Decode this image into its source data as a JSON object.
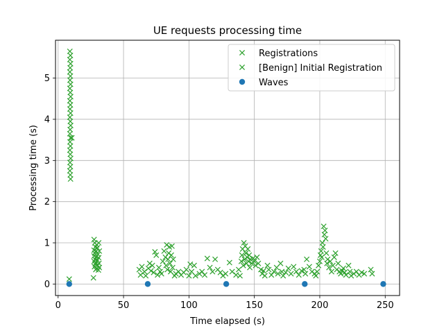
{
  "chart_data": {
    "type": "scatter",
    "title": "UE requests processing time",
    "xlabel": "Time elapsed (s)",
    "ylabel": "Processing time (s)",
    "xlim": [
      -2,
      261
    ],
    "ylim": [
      -0.28,
      5.92
    ],
    "xticks": [
      0,
      50,
      100,
      150,
      200,
      250
    ],
    "yticks": [
      0,
      1,
      2,
      3,
      4,
      5
    ],
    "grid": true,
    "legend_position": "top-right",
    "colors": {
      "registrations": "#2ca02c",
      "benign": "#2ca02c",
      "waves": "#1f77b4"
    },
    "series": [
      {
        "name": "Registrations",
        "marker": "x",
        "color": "#2ca02c",
        "points": [
          [
            8.5,
            0.12
          ],
          [
            27,
            0.15
          ]
        ]
      },
      {
        "name": "[Benign] Initial Registration",
        "marker": "x",
        "color": "#2ca02c",
        "points": [
          [
            9,
            5.65
          ],
          [
            9.4,
            5.55
          ],
          [
            9,
            5.45
          ],
          [
            9.5,
            5.35
          ],
          [
            9.2,
            5.25
          ],
          [
            9,
            5.15
          ],
          [
            9.4,
            5.05
          ],
          [
            9.1,
            4.95
          ],
          [
            9.5,
            4.85
          ],
          [
            9,
            4.75
          ],
          [
            9.3,
            4.65
          ],
          [
            9.6,
            4.55
          ],
          [
            9,
            4.45
          ],
          [
            9.4,
            4.35
          ],
          [
            9.1,
            4.25
          ],
          [
            9.5,
            4.15
          ],
          [
            9,
            4.05
          ],
          [
            9.3,
            3.95
          ],
          [
            9.6,
            3.85
          ],
          [
            9.2,
            3.75
          ],
          [
            9,
            3.65
          ],
          [
            9.5,
            3.55
          ],
          [
            10.5,
            3.55
          ],
          [
            9.1,
            3.45
          ],
          [
            9.4,
            3.35
          ],
          [
            9,
            3.25
          ],
          [
            9.3,
            3.15
          ],
          [
            9.6,
            3.05
          ],
          [
            9.1,
            2.95
          ],
          [
            9.4,
            2.85
          ],
          [
            9,
            2.75
          ],
          [
            9.3,
            2.65
          ],
          [
            9.5,
            2.55
          ],
          [
            27.5,
            1.08
          ],
          [
            28,
            1.0
          ],
          [
            29.5,
            0.95
          ],
          [
            31,
            1.0
          ],
          [
            28.5,
            0.9
          ],
          [
            30,
            0.88
          ],
          [
            27.5,
            0.82
          ],
          [
            29,
            0.8
          ],
          [
            31.5,
            0.8
          ],
          [
            28,
            0.75
          ],
          [
            30.5,
            0.72
          ],
          [
            27.5,
            0.68
          ],
          [
            29.2,
            0.66
          ],
          [
            31,
            0.64
          ],
          [
            28.2,
            0.6
          ],
          [
            30,
            0.58
          ],
          [
            27.5,
            0.55
          ],
          [
            29,
            0.52
          ],
          [
            31.2,
            0.5
          ],
          [
            28.4,
            0.48
          ],
          [
            30.2,
            0.45
          ],
          [
            27.8,
            0.42
          ],
          [
            29.6,
            0.38
          ],
          [
            31.5,
            0.4
          ],
          [
            28.8,
            0.35
          ],
          [
            30.8,
            0.34
          ],
          [
            62,
            0.35
          ],
          [
            63,
            0.22
          ],
          [
            64,
            0.42
          ],
          [
            66,
            0.3
          ],
          [
            67,
            0.2
          ],
          [
            69,
            0.38
          ],
          [
            70,
            0.5
          ],
          [
            71,
            0.32
          ],
          [
            72,
            0.45
          ],
          [
            73,
            0.28
          ],
          [
            74,
            0.78
          ],
          [
            75,
            0.7
          ],
          [
            76,
            0.22
          ],
          [
            77,
            0.4
          ],
          [
            78,
            0.3
          ],
          [
            79,
            0.25
          ],
          [
            80,
            0.55
          ],
          [
            81,
            0.8
          ],
          [
            82,
            0.65
          ],
          [
            82.5,
            0.45
          ],
          [
            83,
            0.95
          ],
          [
            83.5,
            0.35
          ],
          [
            84,
            0.6
          ],
          [
            84.5,
            0.75
          ],
          [
            85,
            0.9
          ],
          [
            85.5,
            0.5
          ],
          [
            86,
            0.3
          ],
          [
            86.5,
            0.7
          ],
          [
            87,
            0.92
          ],
          [
            87.5,
            0.4
          ],
          [
            88,
            0.6
          ],
          [
            89,
            0.2
          ],
          [
            90,
            0.25
          ],
          [
            92,
            0.3
          ],
          [
            94,
            0.22
          ],
          [
            96,
            0.28
          ],
          [
            98,
            0.35
          ],
          [
            100,
            0.2
          ],
          [
            101,
            0.48
          ],
          [
            102,
            0.3
          ],
          [
            104,
            0.45
          ],
          [
            105,
            0.2
          ],
          [
            108,
            0.25
          ],
          [
            110,
            0.3
          ],
          [
            112,
            0.22
          ],
          [
            114,
            0.62
          ],
          [
            116,
            0.4
          ],
          [
            118,
            0.3
          ],
          [
            120,
            0.6
          ],
          [
            122,
            0.35
          ],
          [
            124,
            0.28
          ],
          [
            126,
            0.2
          ],
          [
            128,
            0.25
          ],
          [
            131,
            0.52
          ],
          [
            133,
            0.3
          ],
          [
            136,
            0.22
          ],
          [
            138,
            0.35
          ],
          [
            139,
            0.2
          ],
          [
            140,
            0.55
          ],
          [
            140.5,
            0.7
          ],
          [
            141,
            0.85
          ],
          [
            141.5,
            0.45
          ],
          [
            142,
            1.0
          ],
          [
            142.5,
            0.6
          ],
          [
            143,
            0.92
          ],
          [
            143.5,
            0.75
          ],
          [
            144,
            0.5
          ],
          [
            144.5,
            0.65
          ],
          [
            145,
            0.85
          ],
          [
            145.5,
            0.55
          ],
          [
            146,
            0.7
          ],
          [
            146.5,
            0.4
          ],
          [
            147,
            0.6
          ],
          [
            148,
            0.5
          ],
          [
            149,
            0.62
          ],
          [
            150,
            0.55
          ],
          [
            151,
            0.45
          ],
          [
            152,
            0.65
          ],
          [
            153,
            0.5
          ],
          [
            155,
            0.35
          ],
          [
            156,
            0.25
          ],
          [
            157,
            0.32
          ],
          [
            158,
            0.2
          ],
          [
            160,
            0.45
          ],
          [
            161,
            0.35
          ],
          [
            163,
            0.22
          ],
          [
            165,
            0.3
          ],
          [
            167,
            0.4
          ],
          [
            168,
            0.25
          ],
          [
            170,
            0.5
          ],
          [
            171,
            0.3
          ],
          [
            172,
            0.2
          ],
          [
            174,
            0.28
          ],
          [
            176,
            0.38
          ],
          [
            178,
            0.25
          ],
          [
            180,
            0.42
          ],
          [
            182,
            0.3
          ],
          [
            184,
            0.22
          ],
          [
            186,
            0.32
          ],
          [
            188,
            0.35
          ],
          [
            189,
            0.25
          ],
          [
            190,
            0.6
          ],
          [
            192,
            0.42
          ],
          [
            194,
            0.3
          ],
          [
            196,
            0.25
          ],
          [
            197,
            0.2
          ],
          [
            198,
            0.3
          ],
          [
            199,
            0.45
          ],
          [
            200,
            0.55
          ],
          [
            200.5,
            0.7
          ],
          [
            201,
            0.8
          ],
          [
            201.5,
            0.65
          ],
          [
            202,
            1.0
          ],
          [
            202.5,
            0.9
          ],
          [
            203,
            1.4
          ],
          [
            203.5,
            1.2
          ],
          [
            204,
            1.3
          ],
          [
            204.5,
            1.1
          ],
          [
            205,
            0.75
          ],
          [
            205.5,
            0.5
          ],
          [
            206,
            0.6
          ],
          [
            207,
            0.4
          ],
          [
            208,
            0.55
          ],
          [
            209,
            0.3
          ],
          [
            210,
            0.45
          ],
          [
            211,
            0.65
          ],
          [
            212,
            0.75
          ],
          [
            213,
            0.35
          ],
          [
            214,
            0.5
          ],
          [
            215,
            0.3
          ],
          [
            216,
            0.25
          ],
          [
            217,
            0.32
          ],
          [
            218,
            0.38
          ],
          [
            219,
            0.28
          ],
          [
            220,
            0.22
          ],
          [
            222,
            0.45
          ],
          [
            223,
            0.3
          ],
          [
            224,
            0.2
          ],
          [
            226,
            0.25
          ],
          [
            228,
            0.3
          ],
          [
            230,
            0.22
          ],
          [
            232,
            0.28
          ],
          [
            234,
            0.25
          ],
          [
            239,
            0.35
          ],
          [
            240,
            0.25
          ]
        ]
      },
      {
        "name": "Waves",
        "marker": "o",
        "color": "#1f77b4",
        "points": [
          [
            8.5,
            0.0
          ],
          [
            68.5,
            0.0
          ],
          [
            128.5,
            0.0
          ],
          [
            188.5,
            0.0
          ],
          [
            248.5,
            0.0
          ]
        ]
      }
    ]
  }
}
